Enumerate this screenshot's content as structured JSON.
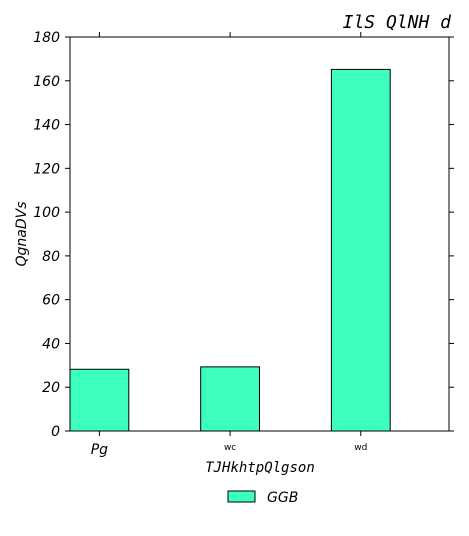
{
  "chart_data": {
    "type": "bar",
    "title": "IlS  QlNH d",
    "xlabel": "TJHkhtpQlgson",
    "ylabel": "QgnaDVs",
    "categories": [
      "Pg",
      "wc",
      "wd"
    ],
    "series": [
      {
        "name": "GGB",
        "values": [
          28.2,
          29.3,
          165.2
        ],
        "color": "#3cffbe"
      }
    ],
    "ylim": [
      0,
      180
    ],
    "yticks": [
      0,
      20,
      40,
      60,
      80,
      100,
      120,
      140,
      160,
      180
    ],
    "grid": false,
    "legend_position": "bottom-center"
  }
}
